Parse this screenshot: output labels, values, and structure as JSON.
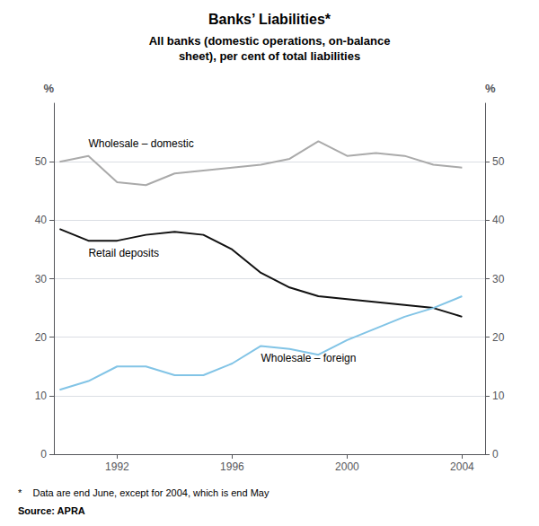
{
  "chart_data": {
    "type": "line",
    "title": "Banks’ Liabilities*",
    "subtitle": "All banks (domestic operations, on-balance\nsheet), per cent of total liabilities",
    "footnote": "*    Data are end June, except for 2004, which is end May",
    "source": "Source: APRA",
    "ylabel": "%",
    "y2label": "%",
    "x": [
      1990,
      1991,
      1992,
      1993,
      1994,
      1995,
      1996,
      1997,
      1998,
      1999,
      2000,
      2001,
      2002,
      2003,
      2004
    ],
    "series": [
      {
        "name": "Wholesale – domestic",
        "color": "#aaaaaa",
        "values": [
          50.0,
          51.0,
          46.5,
          46.0,
          48.0,
          48.5,
          49.0,
          49.5,
          50.5,
          53.5,
          51.0,
          51.5,
          51.0,
          49.5,
          49.0
        ]
      },
      {
        "name": "Retail deposits",
        "color": "#111111",
        "values": [
          38.5,
          36.5,
          36.5,
          37.5,
          38.0,
          37.5,
          35.0,
          31.0,
          28.5,
          27.0,
          26.5,
          26.0,
          25.5,
          25.0,
          23.5
        ]
      },
      {
        "name": "Wholesale – foreign",
        "color": "#82c4e6",
        "values": [
          11.0,
          12.5,
          15.0,
          15.0,
          13.5,
          13.5,
          15.5,
          18.5,
          18.0,
          17.0,
          19.5,
          21.5,
          23.5,
          25.0,
          27.0
        ]
      }
    ],
    "xlim": [
      1989.8,
      2004.8
    ],
    "xticks": [
      1992,
      1996,
      2000,
      2004
    ],
    "ylim": [
      0,
      60
    ],
    "yticks": [
      0,
      10,
      20,
      30,
      40,
      50
    ],
    "y2lim": [
      0,
      60
    ],
    "y2ticks": [
      0,
      10,
      20,
      30,
      40,
      50
    ],
    "grid": true
  }
}
